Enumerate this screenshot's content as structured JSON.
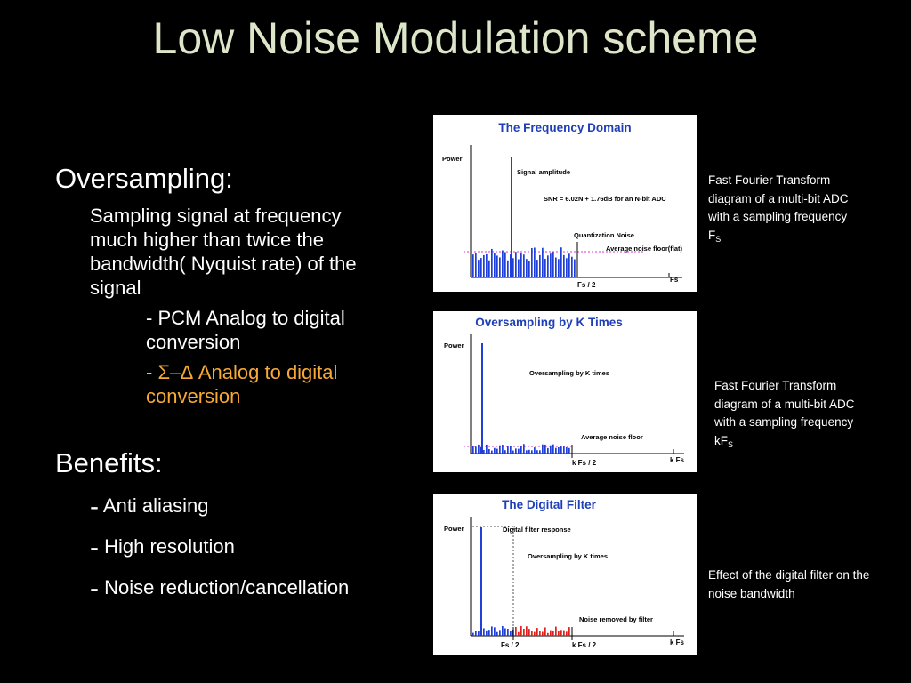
{
  "title": "Low Noise Modulation scheme",
  "oversampling": {
    "heading": "Oversampling:",
    "desc_lines": [
      "Sampling signal at frequency",
      "much higher than twice the",
      "bandwidth( Nyquist rate) of the",
      "signal"
    ],
    "pcm_lines": [
      "- PCM Analog to digital",
      "conversion"
    ],
    "sd_prefix": "- ",
    "sd_symbol": "Σ–∆",
    "sd_rest": " Analog to digital",
    "sd_line2": "conversion"
  },
  "benefits": {
    "heading": "Benefits:",
    "items": [
      {
        "dash": "-",
        "text": "Anti aliasing"
      },
      {
        "dash": "-",
        "text": "High resolution"
      },
      {
        "dash": "-",
        "text": "Noise reduction/cancellation"
      }
    ]
  },
  "captions": {
    "c1_lines": [
      "Fast Fourier Transform",
      "diagram of a multi-bit ADC",
      "with a sampling frequency"
    ],
    "c1_freq": "F",
    "c1_sub": "S",
    "c2_lines": [
      "Fast Fourier Transform",
      "diagram of a multi-bit ADC",
      "with a sampling frequency"
    ],
    "c2_freq": "kF",
    "c2_sub": "S",
    "c3_lines": [
      "Effect of the digital filter on the",
      "noise bandwidth"
    ]
  },
  "panels": {
    "p1": {
      "title": "The Frequency Domain",
      "ylabel": "Power",
      "signal_label": "Signal amplitude",
      "snr_label": "SNR = 6.02N + 1.76dB for an N-bit ADC",
      "qn_label": "Quantization Noise",
      "floor_label": "Average noise floor(flat)",
      "x1": "Fs / 2",
      "x2": "Fs"
    },
    "p2": {
      "title": "Oversampling by K Times",
      "ylabel": "Power",
      "os_label": "Oversampling by K times",
      "floor_label": "Average  noise  floor",
      "x1": "k Fs / 2",
      "x2": "k Fs"
    },
    "p3": {
      "title": "The Digital Filter",
      "ylabel": "Power",
      "filter_label": "Digital filter response",
      "os_label": "Oversampling by K times",
      "removed_label": "Noise removed  by  filter",
      "x1": "Fs / 2",
      "x2": "k Fs / 2",
      "x3": "k Fs"
    },
    "colors": {
      "signal": "#1f3fd8",
      "removed": "#e0201c",
      "floor": "#d63ad0",
      "title": "#1f3fb8"
    }
  }
}
